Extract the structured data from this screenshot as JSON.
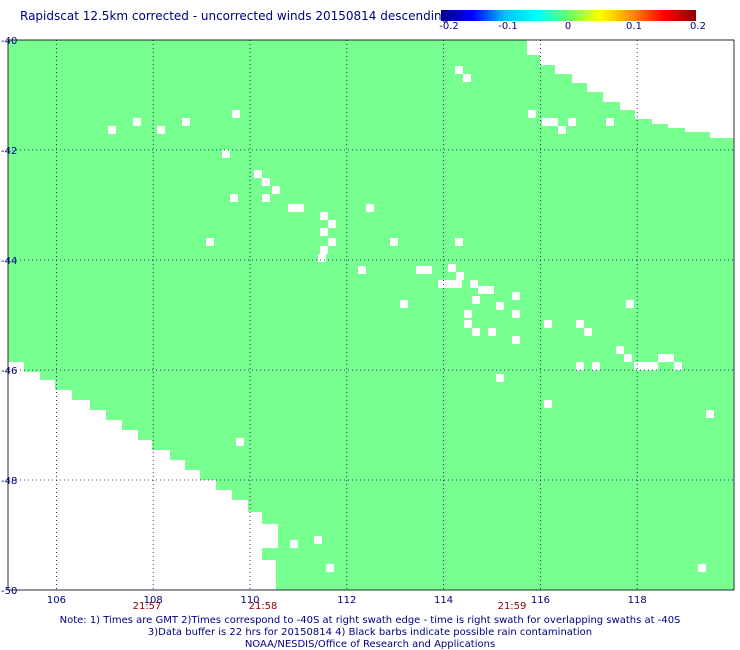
{
  "title": "Rapidscat 12.5km corrected - uncorrected winds 20150814 descending",
  "colorbar": {
    "ticks": [
      "-0.2",
      "-0.1",
      "0",
      "0.1",
      "0.2"
    ],
    "colors": [
      "#00008b",
      "#0000ff",
      "#00bfff",
      "#00ffff",
      "#66ff66",
      "#ffff00",
      "#ff8c00",
      "#ff0000",
      "#8b0000"
    ]
  },
  "map": {
    "lon_range": [
      105,
      120
    ],
    "lat_range": [
      -40,
      -50
    ],
    "lon_ticks": [
      "106",
      "108",
      "110",
      "112",
      "114",
      "116",
      "118"
    ],
    "lat_ticks": [
      "-40",
      "-42",
      "-44",
      "-46",
      "-48",
      "-50"
    ],
    "fill_color": "#77ff8f",
    "grid": "dotted",
    "time_labels": [
      "21:57",
      "21:58",
      "21:59"
    ],
    "time_color": "#8b0000"
  },
  "notes": [
    "Note: 1) Times are GMT 2)Times correspond to -40S at right swath edge - time is right swath for overlapping swaths at -40S",
    "3)Data buffer is 22 hrs for 20150814 4) Black barbs indicate possible rain contamination",
    "NOAA/NESDIS/Office of Research and Applications"
  ]
}
